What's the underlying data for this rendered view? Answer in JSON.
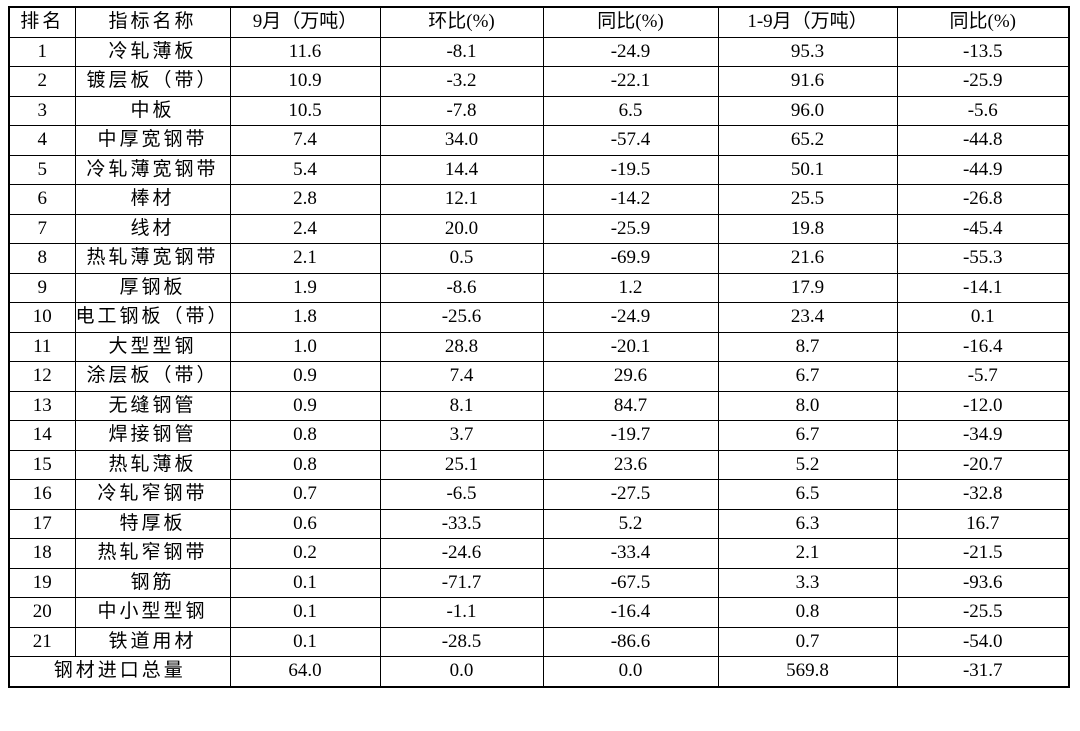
{
  "chart_data": {
    "type": "table",
    "columns": [
      "排名",
      "指标名称",
      "9月（万吨）",
      "环比(%)",
      "同比(%)",
      "1-9月（万吨）",
      "同比(%)"
    ],
    "rows": [
      [
        "1",
        "冷轧薄板",
        "11.6",
        "-8.1",
        "-24.9",
        "95.3",
        "-13.5"
      ],
      [
        "2",
        "镀层板（带）",
        "10.9",
        "-3.2",
        "-22.1",
        "91.6",
        "-25.9"
      ],
      [
        "3",
        "中板",
        "10.5",
        "-7.8",
        "6.5",
        "96.0",
        "-5.6"
      ],
      [
        "4",
        "中厚宽钢带",
        "7.4",
        "34.0",
        "-57.4",
        "65.2",
        "-44.8"
      ],
      [
        "5",
        "冷轧薄宽钢带",
        "5.4",
        "14.4",
        "-19.5",
        "50.1",
        "-44.9"
      ],
      [
        "6",
        "棒材",
        "2.8",
        "12.1",
        "-14.2",
        "25.5",
        "-26.8"
      ],
      [
        "7",
        "线材",
        "2.4",
        "20.0",
        "-25.9",
        "19.8",
        "-45.4"
      ],
      [
        "8",
        "热轧薄宽钢带",
        "2.1",
        "0.5",
        "-69.9",
        "21.6",
        "-55.3"
      ],
      [
        "9",
        "厚钢板",
        "1.9",
        "-8.6",
        "1.2",
        "17.9",
        "-14.1"
      ],
      [
        "10",
        "电工钢板（带）",
        "1.8",
        "-25.6",
        "-24.9",
        "23.4",
        "0.1"
      ],
      [
        "11",
        "大型型钢",
        "1.0",
        "28.8",
        "-20.1",
        "8.7",
        "-16.4"
      ],
      [
        "12",
        "涂层板（带）",
        "0.9",
        "7.4",
        "29.6",
        "6.7",
        "-5.7"
      ],
      [
        "13",
        "无缝钢管",
        "0.9",
        "8.1",
        "84.7",
        "8.0",
        "-12.0"
      ],
      [
        "14",
        "焊接钢管",
        "0.8",
        "3.7",
        "-19.7",
        "6.7",
        "-34.9"
      ],
      [
        "15",
        "热轧薄板",
        "0.8",
        "25.1",
        "23.6",
        "5.2",
        "-20.7"
      ],
      [
        "16",
        "冷轧窄钢带",
        "0.7",
        "-6.5",
        "-27.5",
        "6.5",
        "-32.8"
      ],
      [
        "17",
        "特厚板",
        "0.6",
        "-33.5",
        "5.2",
        "6.3",
        "16.7"
      ],
      [
        "18",
        "热轧窄钢带",
        "0.2",
        "-24.6",
        "-33.4",
        "2.1",
        "-21.5"
      ],
      [
        "19",
        "钢筋",
        "0.1",
        "-71.7",
        "-67.5",
        "3.3",
        "-93.6"
      ],
      [
        "20",
        "中小型型钢",
        "0.1",
        "-1.1",
        "-16.4",
        "0.8",
        "-25.5"
      ],
      [
        "21",
        "铁道用材",
        "0.1",
        "-28.5",
        "-86.6",
        "0.7",
        "-54.0"
      ]
    ],
    "total_row": [
      "钢材进口总量",
      "64.0",
      "0.0",
      "0.0",
      "569.8",
      "-31.7"
    ],
    "layout_hints": {
      "grid": "all-borders",
      "total_label_colspan": 2,
      "alignment": "center"
    }
  },
  "colors": {
    "background": "#ffffff",
    "border": "#000000",
    "text": "#000000"
  }
}
